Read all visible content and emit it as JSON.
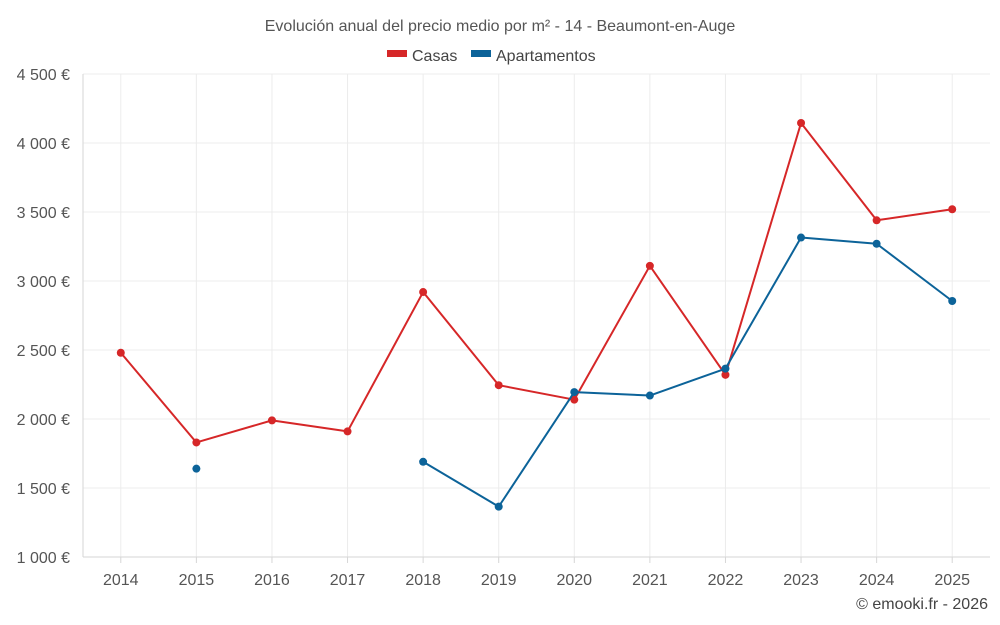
{
  "chart_data": {
    "type": "line",
    "title": "Evolución anual del precio medio por m² - 14 - Beaumont-en-Auge",
    "xlabel": "",
    "ylabel": "",
    "categories": [
      "2014",
      "2015",
      "2016",
      "2017",
      "2018",
      "2019",
      "2020",
      "2021",
      "2022",
      "2023",
      "2024",
      "2025"
    ],
    "ylim": [
      1000,
      4500
    ],
    "yticks": [
      1000,
      1500,
      2000,
      2500,
      3000,
      3500,
      4000,
      4500
    ],
    "ytick_labels": [
      "1 000 €",
      "1 500 €",
      "2 000 €",
      "2 500 €",
      "3 000 €",
      "3 500 €",
      "4 000 €",
      "4 500 €"
    ],
    "legend_position": "top-center",
    "grid": true,
    "series": [
      {
        "name": "Casas",
        "color": "#d62728",
        "values": [
          2480,
          1830,
          1990,
          1910,
          2920,
          2245,
          2140,
          3110,
          2320,
          4145,
          3440,
          3520
        ]
      },
      {
        "name": "Apartamentos",
        "color": "#0c6399",
        "values": [
          null,
          1640,
          null,
          null,
          1690,
          1365,
          2195,
          2170,
          2365,
          3315,
          3270,
          2855
        ]
      }
    ]
  },
  "credit": "© emooki.fr - 2026"
}
